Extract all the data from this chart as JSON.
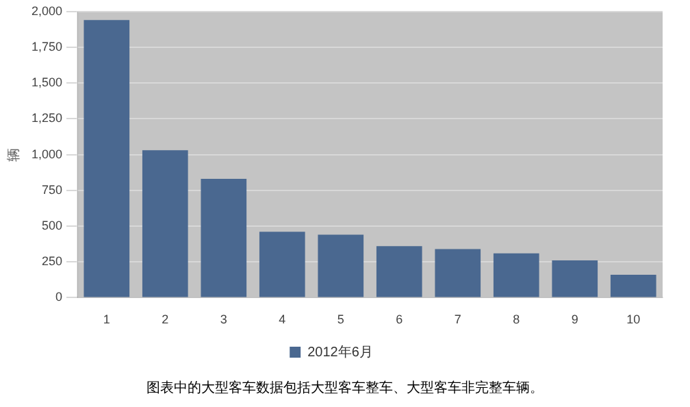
{
  "chart_data": {
    "type": "bar",
    "ylabel": "辆",
    "categories": [
      "1",
      "2",
      "3",
      "4",
      "5",
      "6",
      "7",
      "8",
      "9",
      "10"
    ],
    "series": [
      {
        "name": "2012年6月",
        "color": "#4a6890",
        "values": [
          1940,
          1030,
          830,
          460,
          440,
          360,
          340,
          310,
          260,
          160
        ]
      }
    ],
    "ylim": [
      0,
      2000
    ],
    "yticks": [
      {
        "value": 0,
        "label": "0"
      },
      {
        "value": 250,
        "label": "250"
      },
      {
        "value": 500,
        "label": "500"
      },
      {
        "value": 750,
        "label": "750"
      },
      {
        "value": 1000,
        "label": "1,000"
      },
      {
        "value": 1250,
        "label": "1,250"
      },
      {
        "value": 1500,
        "label": "1,500"
      },
      {
        "value": 1750,
        "label": "1,750"
      },
      {
        "value": 2000,
        "label": "2,000"
      }
    ],
    "grid": "y",
    "legend": "bottom",
    "annotations": [
      "图表中的大型客车数据包括大型客车整车、大型客车非完整车辆。"
    ]
  }
}
